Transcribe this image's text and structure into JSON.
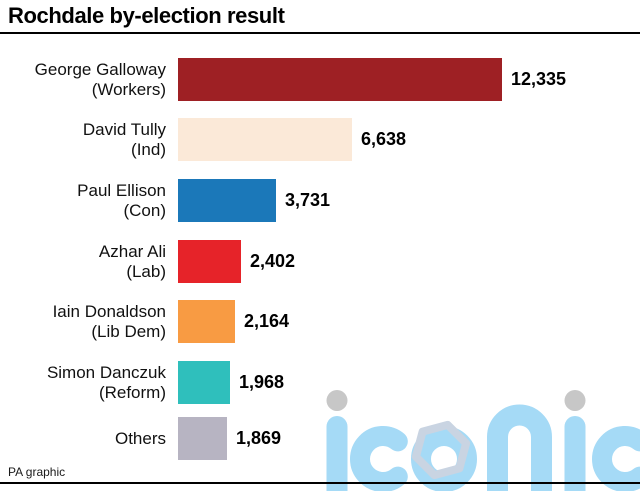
{
  "header": {
    "title": "Rochdale by-election result"
  },
  "footer": {
    "credit": "PA graphic"
  },
  "watermark": {
    "text": "iconic",
    "letter_color": "#a5daf6",
    "dot_color": "#c7c7c7",
    "hexagon_color": "#c9d4e2"
  },
  "chart_data": {
    "type": "bar",
    "orientation": "horizontal",
    "title": "Rochdale by-election result",
    "categories": [
      "George Galloway (Workers)",
      "David Tully (Ind)",
      "Paul Ellison (Con)",
      "Azhar Ali (Lab)",
      "Iain Donaldson (Lib Dem)",
      "Simon Danczuk (Reform)",
      "Others"
    ],
    "values": [
      12335,
      6638,
      3731,
      2402,
      2164,
      1968,
      1869
    ],
    "xlim": [
      0,
      12335
    ],
    "grid": false,
    "legend": false,
    "bars": [
      {
        "label_lines": [
          "George Galloway",
          "(Workers)"
        ],
        "candidate": "George Galloway",
        "party": "Workers",
        "value": 12335,
        "value_label": "12,335",
        "color": "#9e2024"
      },
      {
        "label_lines": [
          "David Tully",
          "(Ind)"
        ],
        "candidate": "David Tully",
        "party": "Ind",
        "value": 6638,
        "value_label": "6,638",
        "color": "#fbe9d8"
      },
      {
        "label_lines": [
          "Paul Ellison",
          "(Con)"
        ],
        "candidate": "Paul Ellison",
        "party": "Con",
        "value": 3731,
        "value_label": "3,731",
        "color": "#1b78b9"
      },
      {
        "label_lines": [
          "Azhar Ali",
          "(Lab)"
        ],
        "candidate": "Azhar Ali",
        "party": "Lab",
        "value": 2402,
        "value_label": "2,402",
        "color": "#e62329"
      },
      {
        "label_lines": [
          "Iain Donaldson",
          "(Lib Dem)"
        ],
        "candidate": "Iain Donaldson",
        "party": "Lib Dem",
        "value": 2164,
        "value_label": "2,164",
        "color": "#f89b43"
      },
      {
        "label_lines": [
          "Simon Danczuk",
          "(Reform)"
        ],
        "candidate": "Simon Danczuk",
        "party": "Reform",
        "value": 1968,
        "value_label": "1,968",
        "color": "#2fbfbc"
      },
      {
        "label_lines": [
          "Others"
        ],
        "candidate": "Others",
        "party": "",
        "value": 1869,
        "value_label": "1,869",
        "color": "#b7b4c2"
      }
    ]
  }
}
